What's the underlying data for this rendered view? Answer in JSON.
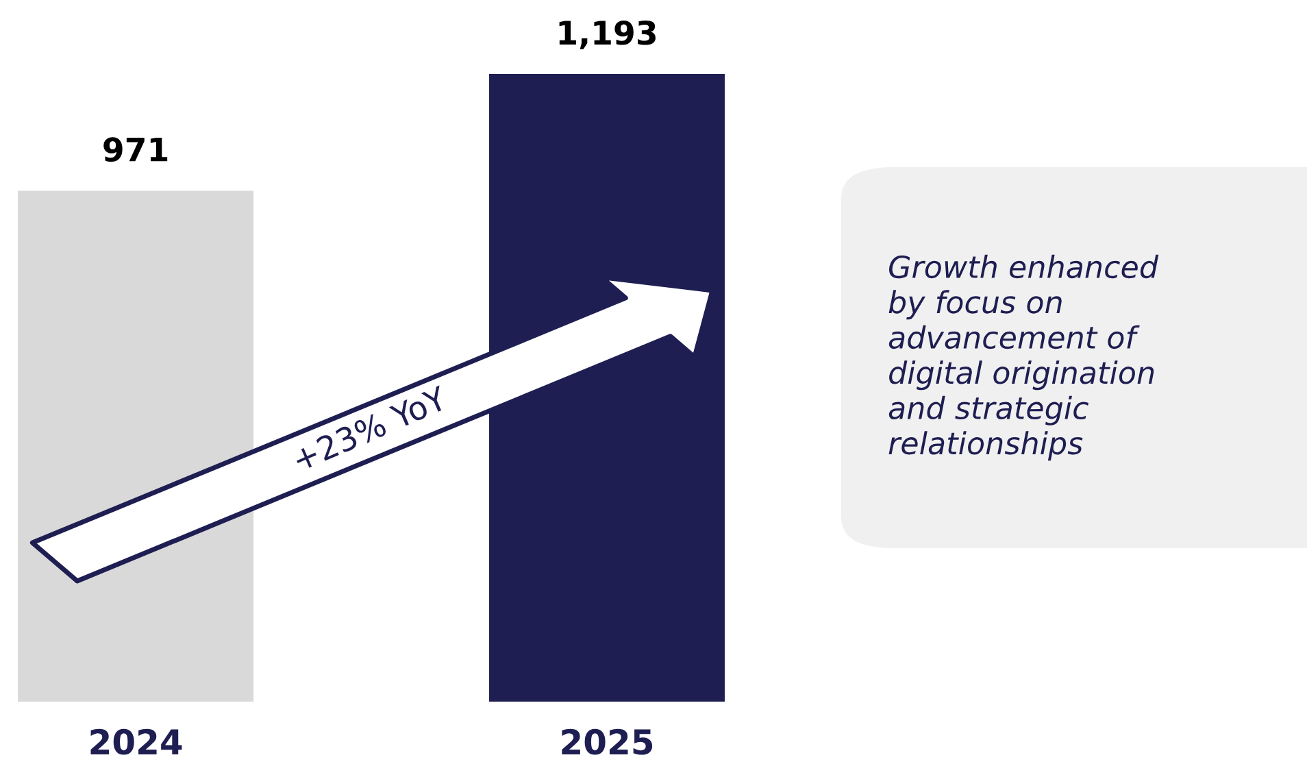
{
  "chart_data": {
    "type": "bar",
    "categories": [
      "2024",
      "2025"
    ],
    "values": [
      971,
      1193
    ],
    "colors": [
      "#d9d9d9",
      "#1e1e52"
    ],
    "value_labels": [
      "971",
      "1,193"
    ],
    "tick_labels": "x",
    "annotations": [
      "+23% YoY",
      "Growth enhanced\nby focus on\nadvancement of\ndigital origination\nand strategic\nrelationships"
    ]
  }
}
